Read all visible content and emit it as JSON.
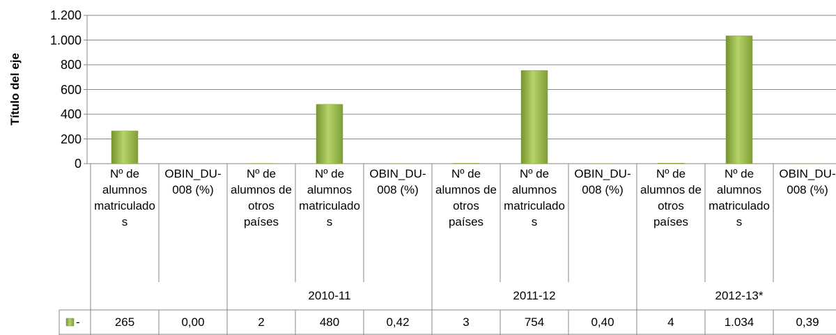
{
  "chart_data": {
    "type": "bar",
    "y_axis_label": "Título del eje",
    "categories": [
      "Nº de alumnos matriculados",
      "OBIN_DU-008 (%)",
      "Nº de alumnos de otros países",
      "Nº de alumnos matriculados",
      "OBIN_DU-008 (%)",
      "Nº de alumnos de otros países",
      "Nº de alumnos matriculados",
      "OBIN_DU-008 (%)",
      "Nº de alumnos de otros países",
      "Nº de alumnos matriculados",
      "OBIN_DU-008 (%)"
    ],
    "category_groups": [
      null,
      null,
      "2010-11",
      "2010-11",
      "2010-11",
      "2011-12",
      "2011-12",
      "2011-12",
      "2012-13*",
      "2012-13*",
      "2012-13*"
    ],
    "series": [
      {
        "name": "-",
        "color": "#9bbb59",
        "values": [
          265,
          0.0,
          2,
          480,
          0.42,
          3,
          754,
          0.4,
          4,
          1034,
          0.39
        ],
        "value_labels": [
          "265",
          "0,00",
          "2",
          "480",
          "0,42",
          "3",
          "754",
          "0,40",
          "4",
          "1.034",
          "0,39"
        ]
      }
    ],
    "ylim": [
      0,
      1200
    ],
    "yticks": [
      0,
      200,
      400,
      600,
      800,
      {
        "value": 1000,
        "label": "1.000"
      },
      {
        "value": 1200,
        "label": "1.200"
      }
    ],
    "grid": true,
    "data_table": true
  }
}
